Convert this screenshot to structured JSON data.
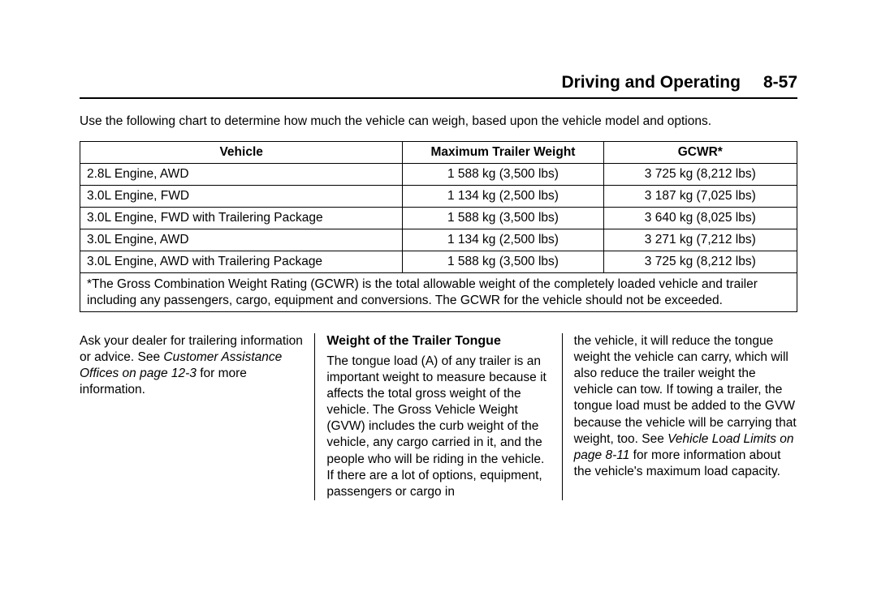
{
  "header": {
    "title": "Driving and Operating",
    "page_number": "8-57"
  },
  "intro": "Use the following chart to determine how much the vehicle can weigh, based upon the vehicle model and options.",
  "table": {
    "columns": [
      "Vehicle",
      "Maximum Trailer Weight",
      "GCWR*"
    ],
    "rows": [
      [
        "2.8L Engine, AWD",
        "1 588 kg (3,500 lbs)",
        "3 725 kg (8,212 lbs)"
      ],
      [
        "3.0L Engine, FWD",
        "1 134 kg (2,500 lbs)",
        "3 187 kg (7,025 lbs)"
      ],
      [
        "3.0L Engine, FWD with Trailering Package",
        "1 588 kg (3,500 lbs)",
        "3 640 kg (8,025 lbs)"
      ],
      [
        "3.0L Engine, AWD",
        "1 134 kg (2,500 lbs)",
        "3 271 kg (7,212 lbs)"
      ],
      [
        "3.0L Engine, AWD with Trailering Package",
        "1 588 kg (3,500 lbs)",
        "3 725 kg (8,212 lbs)"
      ]
    ],
    "footnote": "*The Gross Combination Weight Rating (GCWR) is the total allowable weight of the completely loaded vehicle and trailer including any passengers, cargo, equipment and conversions. The GCWR for the vehicle should not be exceeded.",
    "col_widths": [
      "45%",
      "28%",
      "27%"
    ]
  },
  "body": {
    "col1": {
      "p1": "Ask your dealer for trailering information or advice. See ",
      "p1_italic": "Customer Assistance Offices on page 12‑3",
      "p1_after": " for more information."
    },
    "col2": {
      "heading": "Weight of the Trailer Tongue",
      "p1": "The tongue load (A) of any trailer is an important weight to measure because it affects the total gross weight of the vehicle. The Gross Vehicle Weight (GVW) includes the curb weight of the vehicle, any cargo carried in it, and the people who will be riding in the vehicle. If there are a lot of options, equipment, passengers or cargo in"
    },
    "col3": {
      "p1": "the vehicle, it will reduce the tongue weight the vehicle can carry, which will also reduce the trailer weight the vehicle can tow. If towing a trailer, the tongue load must be added to the GVW because the vehicle will be carrying that weight, too. See ",
      "p1_italic": "Vehicle Load Limits on page 8‑11",
      "p1_after": " for more information about the vehicle's maximum load capacity."
    }
  }
}
